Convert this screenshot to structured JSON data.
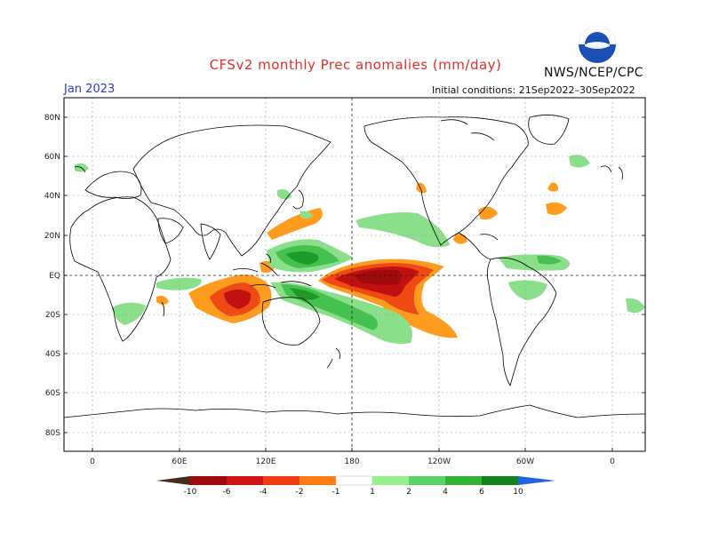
{
  "header": {
    "title": "CFSv2 monthly Prec anomalies (mm/day)",
    "agency": "NWS/NCEP/CPC",
    "logo_text": "NOAA",
    "valid_month": "Jan 2023",
    "initial_conditions": "Initial conditions: 21Sep2022–30Sep2022"
  },
  "axes": {
    "lat_labels": [
      "80N",
      "60N",
      "40N",
      "20N",
      "EQ",
      "20S",
      "40S",
      "60S",
      "80S"
    ],
    "lon_labels": [
      "0",
      "60E",
      "120E",
      "180",
      "120W",
      "60W",
      "0"
    ]
  },
  "colorbar": {
    "labels": [
      "-10",
      "-6",
      "-4",
      "-2",
      "-1",
      "1",
      "2",
      "4",
      "6",
      "10"
    ],
    "colors": [
      "#4a2a1a",
      "#9c0a0a",
      "#cc1414",
      "#f03c12",
      "#ff7c14",
      "#ffa41e",
      "#ffffff",
      "#96f08c",
      "#5ad264",
      "#32b432",
      "#1e9e1e",
      "#14821a",
      "#1f64e0"
    ]
  },
  "colors": {
    "title": "#e0302a",
    "coast": "#000000",
    "grid": "#888888",
    "wet_light": "#8ae08a",
    "wet_mid": "#46c04e",
    "wet_dark": "#1e9a28",
    "dry_light": "#ff9c1e",
    "dry_mid": "#f04a14",
    "dry_dark": "#c01010",
    "dry_core": "#a00a0a"
  }
}
